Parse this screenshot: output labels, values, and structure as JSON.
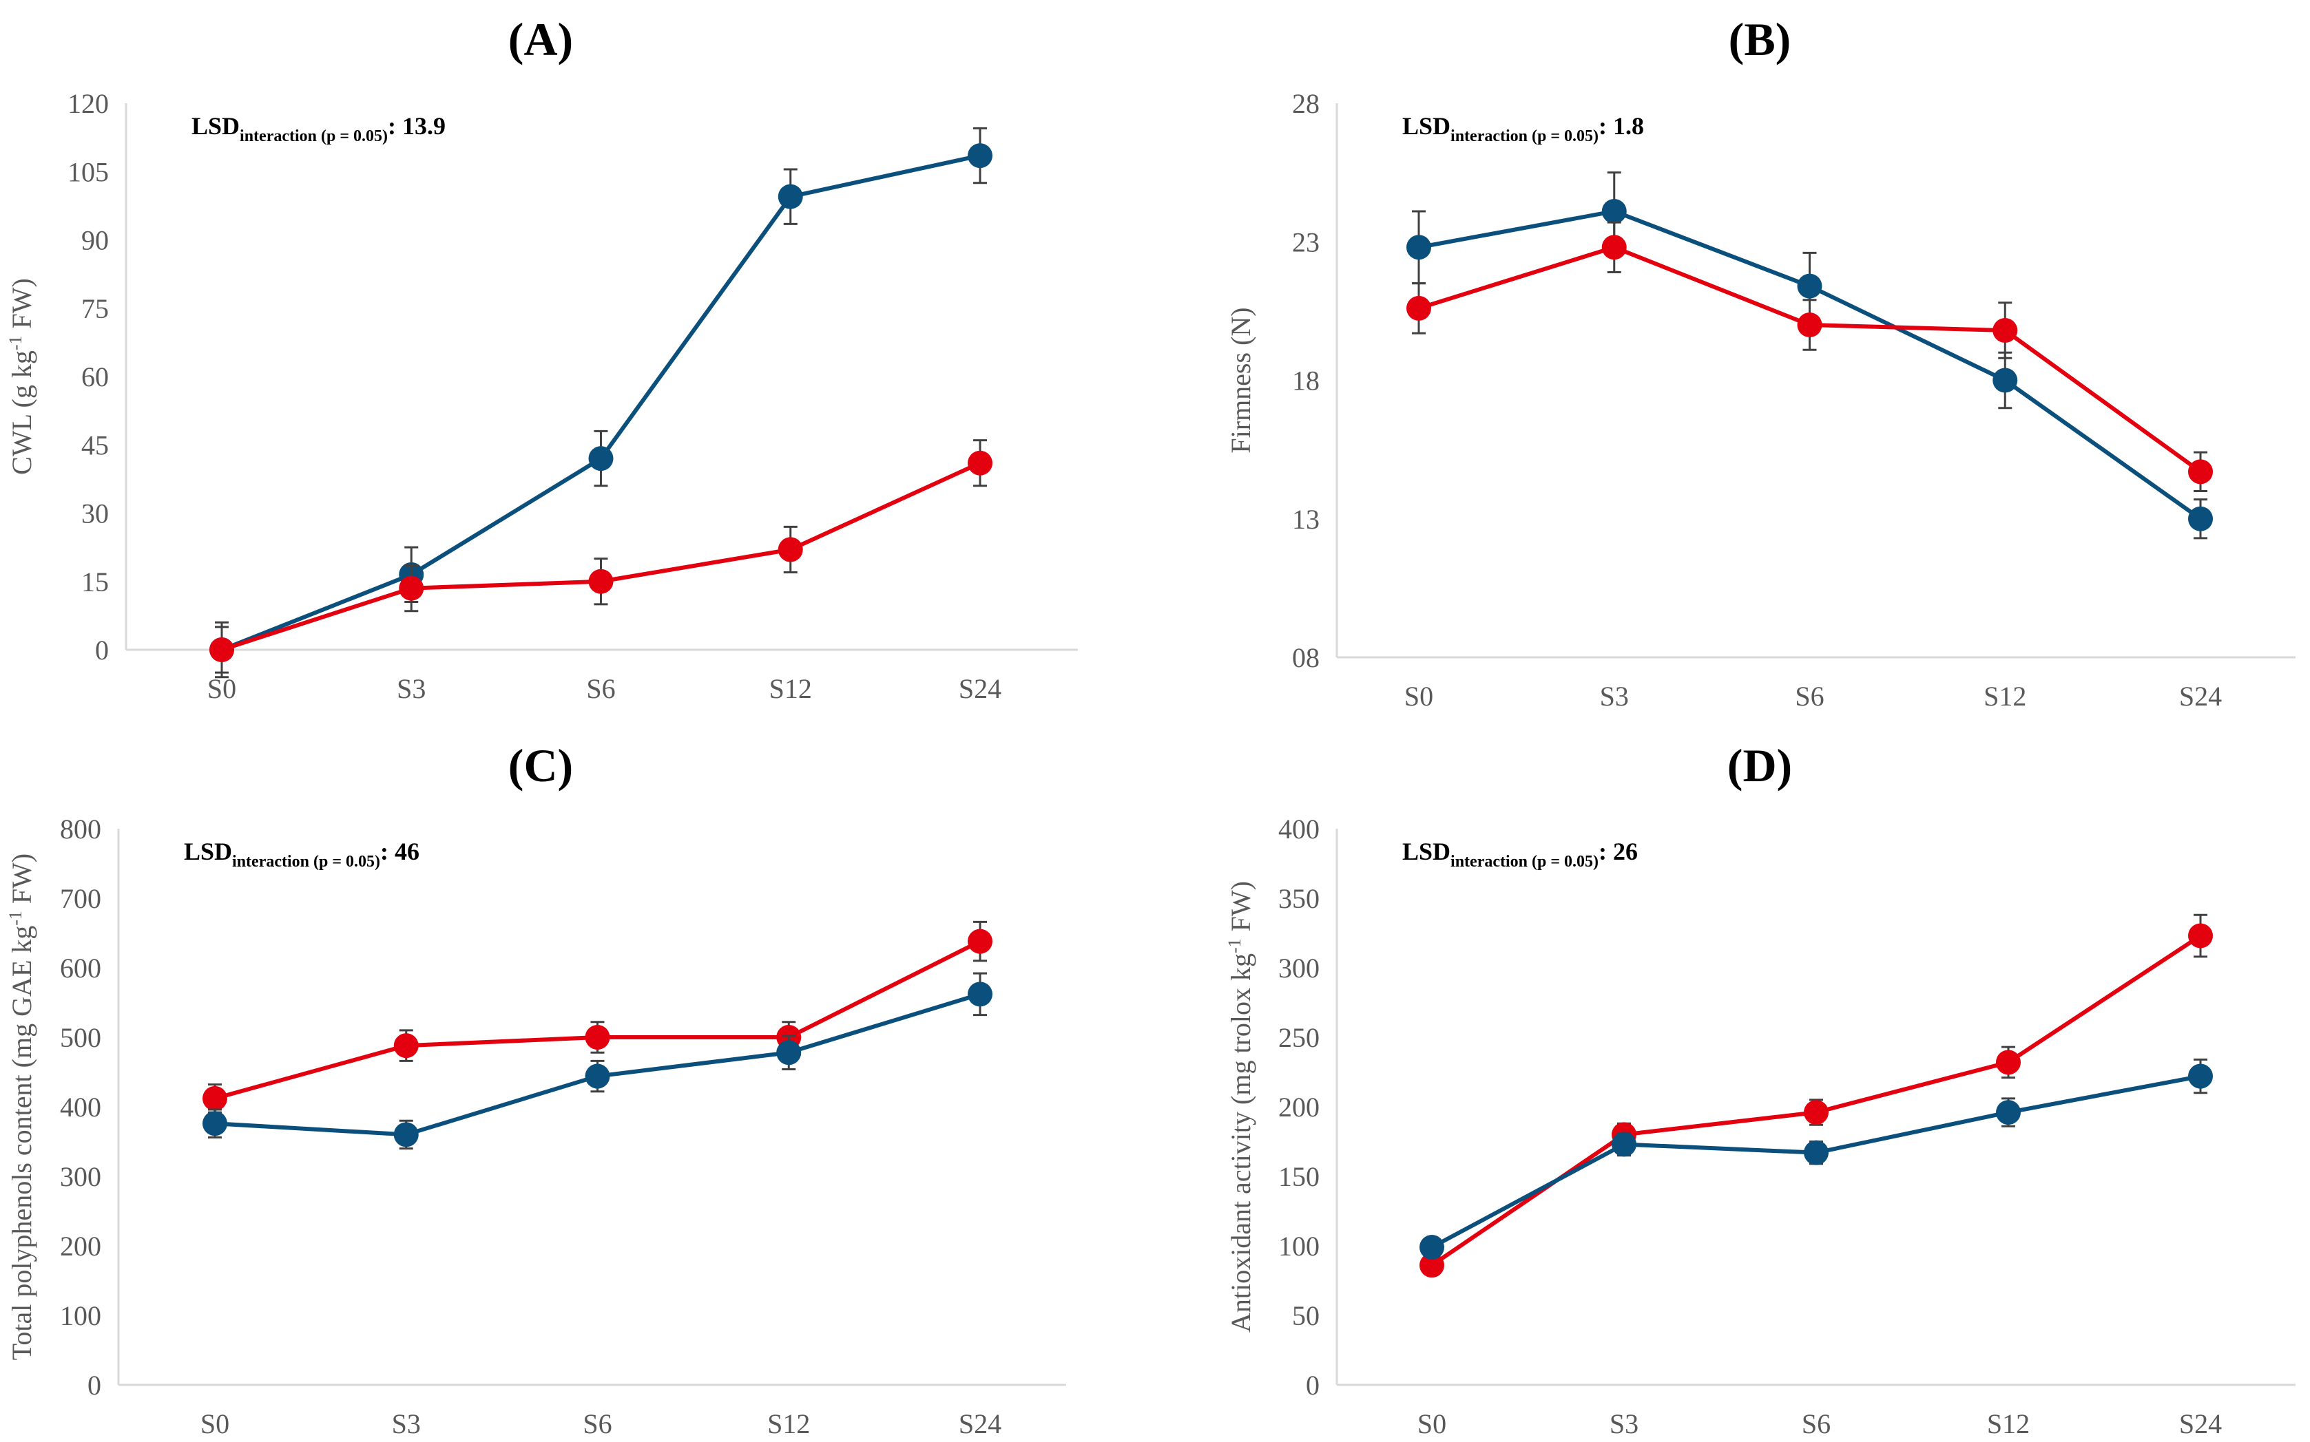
{
  "colors": {
    "blue": "#0b4f7c",
    "red": "#e3000f",
    "error": "#404040",
    "axis": "#d9d9d9"
  },
  "chart_data": [
    {
      "type": "line",
      "panel_label": "(A)",
      "categories": [
        "S0",
        "S3",
        "S6",
        "S12",
        "S24"
      ],
      "ylabel": "CWL (g kg-1 FW)",
      "ylim": [
        0,
        120
      ],
      "yticks": [
        "0",
        "15",
        "30",
        "45",
        "60",
        "75",
        "90",
        "105",
        "120"
      ],
      "lsd": {
        "main": "LSD",
        "sub": "interaction (p = 0.05)",
        "value": ": 13.9"
      },
      "series": [
        {
          "name": "blue",
          "values": [
            0,
            16.5,
            42,
            99.5,
            108.5
          ],
          "errors": [
            6,
            6,
            6,
            6,
            6
          ]
        },
        {
          "name": "red",
          "values": [
            0,
            13.5,
            15,
            22,
            41
          ],
          "errors": [
            5,
            5,
            5,
            5,
            5
          ]
        }
      ]
    },
    {
      "type": "line",
      "panel_label": "(B)",
      "categories": [
        "S0",
        "S3",
        "S6",
        "S12",
        "S24"
      ],
      "ylabel": "Firmness (N)",
      "ylim": [
        8,
        28
      ],
      "yticks": [
        "08",
        "13",
        "18",
        "23",
        "28"
      ],
      "lsd": {
        "main": "LSD",
        "sub": "interaction (p = 0.05)",
        "value": ": 1.8"
      },
      "series": [
        {
          "name": "blue",
          "values": [
            22.8,
            24.1,
            21.4,
            18.0,
            13.0
          ],
          "errors": [
            1.3,
            1.4,
            1.2,
            1.0,
            0.7
          ]
        },
        {
          "name": "red",
          "values": [
            20.6,
            22.8,
            20.0,
            19.8,
            14.7
          ],
          "errors": [
            0.9,
            0.9,
            0.9,
            1.0,
            0.7
          ]
        }
      ]
    },
    {
      "type": "line",
      "panel_label": "(C)",
      "categories": [
        "S0",
        "S3",
        "S6",
        "S12",
        "S24"
      ],
      "ylabel": "Total polyphenols content (mg GAE kg-1 FW)",
      "ylim": [
        0,
        800
      ],
      "yticks": [
        "0",
        "100",
        "200",
        "300",
        "400",
        "500",
        "600",
        "700",
        "800"
      ],
      "lsd": {
        "main": "LSD",
        "sub": "interaction (p = 0.05)",
        "value": ": 46"
      },
      "series": [
        {
          "name": "red",
          "values": [
            412,
            488,
            500,
            500,
            638
          ],
          "errors": [
            20,
            22,
            22,
            22,
            28
          ]
        },
        {
          "name": "blue",
          "values": [
            376,
            360,
            444,
            478,
            562
          ],
          "errors": [
            20,
            20,
            22,
            24,
            30
          ]
        }
      ]
    },
    {
      "type": "line",
      "panel_label": "(D)",
      "categories": [
        "S0",
        "S3",
        "S6",
        "S12",
        "S24"
      ],
      "ylabel": "Antioxidant activity (mg trolox kg-1 FW)",
      "ylim": [
        0,
        400
      ],
      "yticks": [
        "0",
        "50",
        "100",
        "150",
        "200",
        "250",
        "300",
        "350",
        "400"
      ],
      "lsd": {
        "main": "LSD",
        "sub": "interaction (p = 0.05)",
        "value": ": 26"
      },
      "series": [
        {
          "name": "red",
          "values": [
            86,
            180,
            196,
            232,
            323
          ],
          "errors": [
            6,
            8,
            9,
            11,
            15
          ]
        },
        {
          "name": "blue",
          "values": [
            99,
            173,
            167,
            196,
            222
          ],
          "errors": [
            6,
            8,
            8,
            10,
            12
          ]
        }
      ]
    }
  ]
}
